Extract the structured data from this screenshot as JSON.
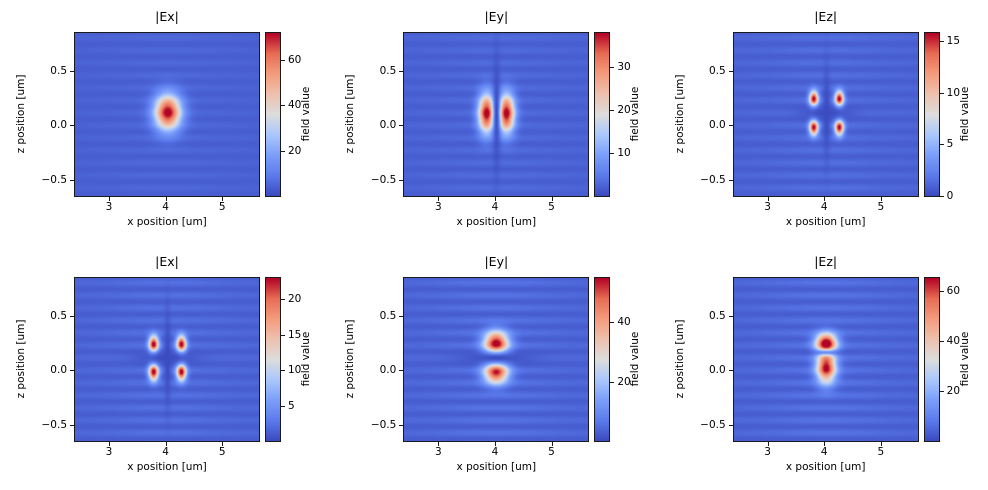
{
  "figure": {
    "background": "#ffffff",
    "colormap": "coolwarm",
    "colormap_stops": [
      {
        "t": 0.0,
        "color": "#3b4cc0"
      },
      {
        "t": 0.125,
        "color": "#5c7ced"
      },
      {
        "t": 0.25,
        "color": "#7c9ff9"
      },
      {
        "t": 0.375,
        "color": "#abc7fd"
      },
      {
        "t": 0.5,
        "color": "#dddddd"
      },
      {
        "t": 0.625,
        "color": "#eec1ae"
      },
      {
        "t": 0.75,
        "color": "#f59c7d"
      },
      {
        "t": 0.875,
        "color": "#e76d54"
      },
      {
        "t": 1.0,
        "color": "#b40426"
      }
    ]
  },
  "chart_data": [
    {
      "type": "heatmap",
      "title": "|Ex|",
      "xlabel": "x position [um]",
      "ylabel": "z position [um]",
      "colorbar_label": "field value",
      "xlim": [
        2.4,
        5.65
      ],
      "zlim": [
        -0.65,
        0.85
      ],
      "xticks": [
        3,
        4,
        5
      ],
      "xtick_labels": [
        "3",
        "4",
        "5"
      ],
      "zticks": [
        -0.5,
        0.0,
        0.5
      ],
      "ztick_labels": [
        "−0.5",
        "0.0",
        "0.5"
      ],
      "vmin": 0,
      "vmax": 72,
      "colorbar_ticks": [
        20,
        40,
        60
      ],
      "base": 0.045,
      "center": {
        "x": 4.03,
        "z": 0.115
      },
      "lobes": [
        {
          "x": 4.04,
          "z": 0.12,
          "amp": 70,
          "sx": 0.16,
          "sz": 0.11
        }
      ],
      "nodes": [],
      "fringe": {
        "amp": 2.2,
        "period": 0.115
      }
    },
    {
      "type": "heatmap",
      "title": "|Ey|",
      "xlabel": "x position [um]",
      "ylabel": "z position [um]",
      "colorbar_label": "field value",
      "xlim": [
        2.4,
        5.65
      ],
      "zlim": [
        -0.65,
        0.85
      ],
      "xticks": [
        3,
        4,
        5
      ],
      "xtick_labels": [
        "3",
        "4",
        "5"
      ],
      "zticks": [
        -0.5,
        0.0,
        0.5
      ],
      "ztick_labels": [
        "−0.5",
        "0.0",
        "0.5"
      ],
      "vmin": 0,
      "vmax": 38,
      "colorbar_ticks": [
        10,
        20,
        30
      ],
      "base": 0.045,
      "center": {
        "x": 4.03,
        "z": 0.115
      },
      "lobes": [
        {
          "x": 3.86,
          "z": 0.11,
          "amp": 37,
          "sx": 0.1,
          "sz": 0.12
        },
        {
          "x": 4.21,
          "z": 0.11,
          "amp": 37,
          "sx": 0.1,
          "sz": 0.12
        }
      ],
      "nodes": [
        {
          "axis": "x",
          "pos": 4.035,
          "w": 0.045,
          "ext": 0.4
        }
      ],
      "fringe": {
        "amp": 1.5,
        "period": 0.115
      }
    },
    {
      "type": "heatmap",
      "title": "|Ez|",
      "xlabel": "x position [um]",
      "ylabel": "z position [um]",
      "colorbar_label": "field value",
      "xlim": [
        2.4,
        5.65
      ],
      "zlim": [
        -0.65,
        0.85
      ],
      "xticks": [
        3,
        4,
        5
      ],
      "xtick_labels": [
        "3",
        "4",
        "5"
      ],
      "zticks": [
        -0.5,
        0.0,
        0.5
      ],
      "ztick_labels": [
        "−0.5",
        "0.0",
        "0.5"
      ],
      "vmin": 0,
      "vmax": 15.8,
      "colorbar_ticks": [
        0,
        5,
        10,
        15
      ],
      "base": 0.045,
      "center": {
        "x": 4.03,
        "z": 0.115
      },
      "lobes": [
        {
          "x": 3.81,
          "z": 0.245,
          "amp": 15.2,
          "sx": 0.055,
          "sz": 0.05
        },
        {
          "x": 4.26,
          "z": 0.245,
          "amp": 15.2,
          "sx": 0.055,
          "sz": 0.05
        },
        {
          "x": 3.81,
          "z": -0.02,
          "amp": 15.2,
          "sx": 0.055,
          "sz": 0.05
        },
        {
          "x": 4.26,
          "z": -0.02,
          "amp": 15.2,
          "sx": 0.055,
          "sz": 0.05
        }
      ],
      "nodes": [
        {
          "axis": "x",
          "pos": 4.035,
          "w": 0.04,
          "ext": 0.3
        },
        {
          "axis": "z",
          "pos": 0.115,
          "w": 0.04,
          "ext": 0.35
        }
      ],
      "fringe": {
        "amp": 0.75,
        "period": 0.115
      }
    },
    {
      "type": "heatmap",
      "title": "|Ex|",
      "xlabel": "x position [um]",
      "ylabel": "z position [um]",
      "colorbar_label": "field value",
      "xlim": [
        2.4,
        5.65
      ],
      "zlim": [
        -0.65,
        0.85
      ],
      "xticks": [
        3,
        4,
        5
      ],
      "xtick_labels": [
        "3",
        "4",
        "5"
      ],
      "zticks": [
        -0.5,
        0.0,
        0.5
      ],
      "ztick_labels": [
        "−0.5",
        "0.0",
        "0.5"
      ],
      "vmin": 0,
      "vmax": 23,
      "colorbar_ticks": [
        5,
        10,
        15,
        20
      ],
      "base": 0.045,
      "center": {
        "x": 4.03,
        "z": 0.115
      },
      "lobes": [
        {
          "x": 3.79,
          "z": 0.24,
          "amp": 22.4,
          "sx": 0.06,
          "sz": 0.055
        },
        {
          "x": 4.28,
          "z": 0.24,
          "amp": 22.4,
          "sx": 0.06,
          "sz": 0.055
        },
        {
          "x": 3.79,
          "z": -0.015,
          "amp": 22.4,
          "sx": 0.06,
          "sz": 0.055
        },
        {
          "x": 4.28,
          "z": -0.015,
          "amp": 22.4,
          "sx": 0.06,
          "sz": 0.055
        }
      ],
      "nodes": [
        {
          "axis": "x",
          "pos": 4.035,
          "w": 0.04,
          "ext": 0.32
        },
        {
          "axis": "z",
          "pos": 0.115,
          "w": 0.04,
          "ext": 0.42
        }
      ],
      "fringe": {
        "amp": 1.2,
        "period": 0.115
      }
    },
    {
      "type": "heatmap",
      "title": "|Ey|",
      "xlabel": "x position [um]",
      "ylabel": "z position [um]",
      "colorbar_label": "field value",
      "xlim": [
        2.4,
        5.65
      ],
      "zlim": [
        -0.65,
        0.85
      ],
      "xticks": [
        3,
        4,
        5
      ],
      "xtick_labels": [
        "3",
        "4",
        "5"
      ],
      "zticks": [
        -0.5,
        0.0,
        0.5
      ],
      "ztick_labels": [
        "−0.5",
        "0.0",
        "0.5"
      ],
      "vmin": 0,
      "vmax": 55,
      "colorbar_ticks": [
        20,
        40
      ],
      "base": 0.045,
      "center": {
        "x": 4.03,
        "z": 0.115
      },
      "lobes": [
        {
          "x": 4.03,
          "z": 0.25,
          "amp": 54,
          "sx": 0.15,
          "sz": 0.075
        },
        {
          "x": 4.03,
          "z": -0.02,
          "amp": 50,
          "sx": 0.15,
          "sz": 0.07
        }
      ],
      "nodes": [
        {
          "axis": "z",
          "pos": 0.115,
          "w": 0.04,
          "ext": 0.5
        }
      ],
      "fringe": {
        "amp": 3.2,
        "period": 0.115
      }
    },
    {
      "type": "heatmap",
      "title": "|Ez|",
      "xlabel": "x position [um]",
      "ylabel": "z position [um]",
      "colorbar_label": "field value",
      "xlim": [
        2.4,
        5.65
      ],
      "zlim": [
        -0.65,
        0.85
      ],
      "xticks": [
        3,
        4,
        5
      ],
      "xtick_labels": [
        "3",
        "4",
        "5"
      ],
      "zticks": [
        -0.5,
        0.0,
        0.5
      ],
      "ztick_labels": [
        "−0.5",
        "0.0",
        "0.5"
      ],
      "vmin": 0,
      "vmax": 65,
      "colorbar_ticks": [
        20,
        40,
        60
      ],
      "base": 0.045,
      "center": {
        "x": 4.03,
        "z": 0.115
      },
      "lobes": [
        {
          "x": 4.03,
          "z": 0.255,
          "amp": 64,
          "sx": 0.13,
          "sz": 0.06
        },
        {
          "x": 4.03,
          "z": 0.03,
          "amp": 62,
          "sx": 0.12,
          "sz": 0.1
        }
      ],
      "nodes": [
        {
          "axis": "z",
          "pos": 0.165,
          "w": 0.02,
          "ext": 0.25,
          "depth": 0.75
        }
      ],
      "fringe": {
        "amp": 3.8,
        "period": 0.115
      }
    }
  ]
}
